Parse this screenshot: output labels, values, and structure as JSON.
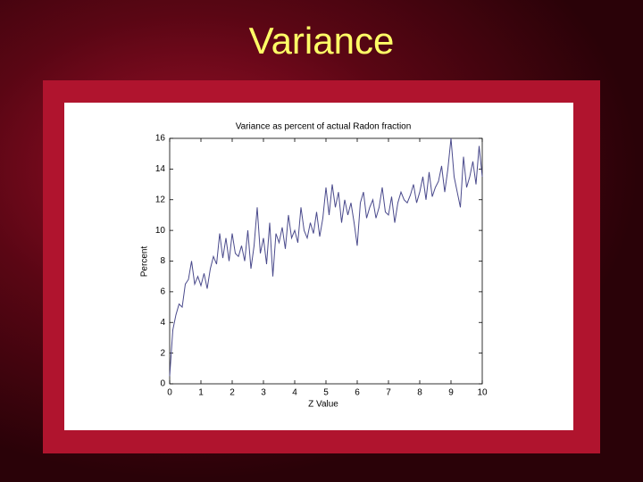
{
  "slide_title": "Variance",
  "chart_data": {
    "type": "line",
    "title": "Variance as percent of actual Radon fraction",
    "x_label": "Z Value",
    "y_label": "Percent",
    "color": "#4a4a8c",
    "xlim": [
      0,
      10
    ],
    "xticks": [
      0,
      1,
      2,
      3,
      4,
      5,
      6,
      7,
      8,
      9,
      10
    ],
    "ylim": [
      0,
      16
    ],
    "yticks": [
      0,
      2,
      4,
      6,
      8,
      10,
      12,
      14,
      16
    ],
    "x": [
      0,
      0.1,
      0.2,
      0.3,
      0.4,
      0.5,
      0.6,
      0.7,
      0.8,
      0.9,
      1,
      1.1,
      1.2,
      1.3,
      1.4,
      1.5,
      1.6,
      1.7,
      1.8,
      1.9,
      2,
      2.1,
      2.2,
      2.3,
      2.4,
      2.5,
      2.6,
      2.7,
      2.8,
      2.9,
      3,
      3.1,
      3.2,
      3.3,
      3.4,
      3.5,
      3.6,
      3.7,
      3.8,
      3.9,
      4,
      4.1,
      4.2,
      4.3,
      4.4,
      4.5,
      4.6,
      4.7,
      4.8,
      4.9,
      5,
      5.1,
      5.2,
      5.3,
      5.4,
      5.5,
      5.6,
      5.7,
      5.8,
      5.9,
      6,
      6.1,
      6.2,
      6.3,
      6.4,
      6.5,
      6.6,
      6.7,
      6.8,
      6.9,
      7,
      7.1,
      7.2,
      7.3,
      7.4,
      7.5,
      7.6,
      7.7,
      7.8,
      7.9,
      8,
      8.1,
      8.2,
      8.3,
      8.4,
      8.5,
      8.6,
      8.7,
      8.8,
      8.9,
      9,
      9.1,
      9.2,
      9.3,
      9.4,
      9.5,
      9.6,
      9.7,
      9.8,
      9.9,
      10
    ],
    "values": [
      0.5,
      3.5,
      4.5,
      5.2,
      5.0,
      6.5,
      6.8,
      8.0,
      6.5,
      7.0,
      6.4,
      7.2,
      6.2,
      7.5,
      8.3,
      7.8,
      9.8,
      8.2,
      9.5,
      8.0,
      9.8,
      8.5,
      8.3,
      9.0,
      8.0,
      10.0,
      7.5,
      9.0,
      11.5,
      8.5,
      9.5,
      7.8,
      10.5,
      7.0,
      9.8,
      9.2,
      10.2,
      8.8,
      11.0,
      9.5,
      10.0,
      9.2,
      11.5,
      10.0,
      9.5,
      10.5,
      9.8,
      11.2,
      9.6,
      10.8,
      12.8,
      11.0,
      13.0,
      11.5,
      12.5,
      10.5,
      12.0,
      11.0,
      11.8,
      10.5,
      9.0,
      11.8,
      12.5,
      10.8,
      11.5,
      12.0,
      10.8,
      11.5,
      12.8,
      11.2,
      11.0,
      12.2,
      10.5,
      11.8,
      12.5,
      12.0,
      11.8,
      12.3,
      13.0,
      11.8,
      12.5,
      13.5,
      12.0,
      13.8,
      12.2,
      12.8,
      13.2,
      14.2,
      12.5,
      14.0,
      16.0,
      13.5,
      12.5,
      11.5,
      14.8,
      12.8,
      13.5,
      14.5,
      13.0,
      15.5,
      13.5
    ]
  }
}
